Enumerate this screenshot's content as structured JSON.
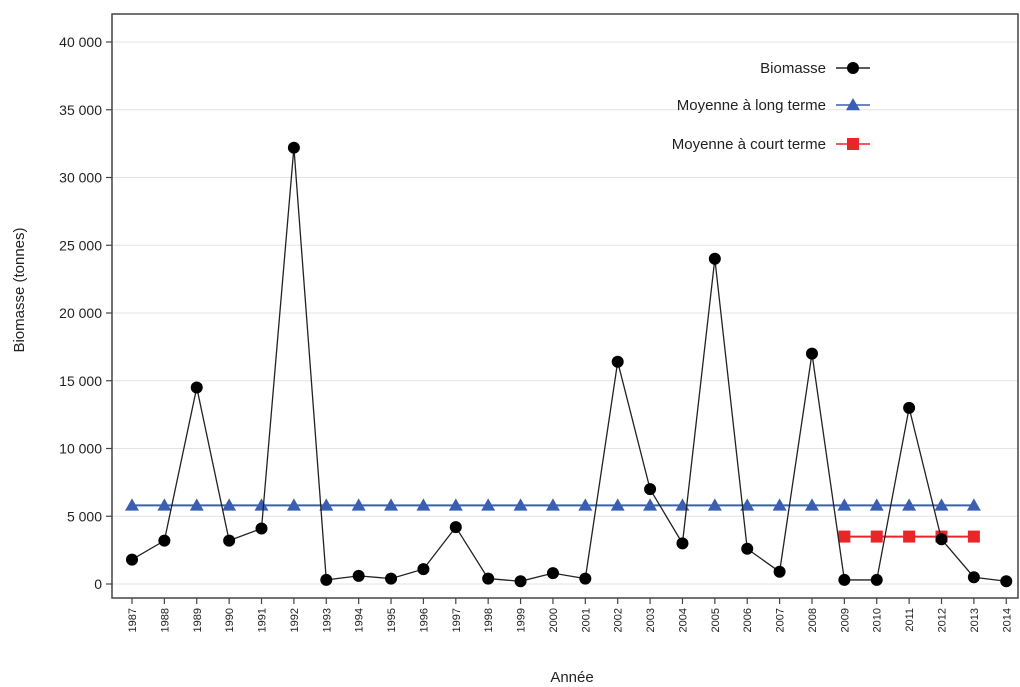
{
  "chart_data": {
    "type": "line",
    "xlabel": "Année",
    "ylabel": "Biomasse (tonnes)",
    "ylim": [
      0,
      40000
    ],
    "yticks": [
      0,
      5000,
      10000,
      15000,
      20000,
      25000,
      30000,
      35000,
      40000
    ],
    "ytick_labels": [
      "0",
      "5 000",
      "10 000",
      "15 000",
      "20 000",
      "25 000",
      "30 000",
      "35 000",
      "40 000"
    ],
    "grid": "horizontal",
    "legend_position": "top-right",
    "x": [
      "1987",
      "1988",
      "1989",
      "1990",
      "1991",
      "1992",
      "1993",
      "1994",
      "1995",
      "1996",
      "1997",
      "1998",
      "1999",
      "2000",
      "2001",
      "2002",
      "2003",
      "2004",
      "2005",
      "2006",
      "2007",
      "2008",
      "2009",
      "2010",
      "2011",
      "2012",
      "2013",
      "2014"
    ],
    "series": [
      {
        "name": "Biomasse",
        "color": "#000000",
        "marker": "circle",
        "x": [
          "1987",
          "1988",
          "1989",
          "1990",
          "1991",
          "1992",
          "1993",
          "1994",
          "1995",
          "1996",
          "1997",
          "1998",
          "1999",
          "2000",
          "2001",
          "2002",
          "2003",
          "2004",
          "2005",
          "2006",
          "2007",
          "2008",
          "2009",
          "2010",
          "2011",
          "2012",
          "2013",
          "2014"
        ],
        "values": [
          1800,
          3200,
          14500,
          3200,
          4100,
          32200,
          300,
          600,
          400,
          1100,
          4200,
          400,
          200,
          800,
          400,
          16400,
          7000,
          3000,
          24000,
          2600,
          900,
          17000,
          300,
          300,
          13000,
          3300,
          500,
          200
        ]
      },
      {
        "name": "Moyenne à long terme",
        "color": "#3a5fb0",
        "marker": "triangle",
        "x": [
          "1987",
          "1988",
          "1989",
          "1990",
          "1991",
          "1992",
          "1993",
          "1994",
          "1995",
          "1996",
          "1997",
          "1998",
          "1999",
          "2000",
          "2001",
          "2002",
          "2003",
          "2004",
          "2005",
          "2006",
          "2007",
          "2008",
          "2009",
          "2010",
          "2011",
          "2012",
          "2013"
        ],
        "values": [
          5800,
          5800,
          5800,
          5800,
          5800,
          5800,
          5800,
          5800,
          5800,
          5800,
          5800,
          5800,
          5800,
          5800,
          5800,
          5800,
          5800,
          5800,
          5800,
          5800,
          5800,
          5800,
          5800,
          5800,
          5800,
          5800,
          5800
        ]
      },
      {
        "name": "Moyenne à court terme",
        "color": "#e8262a",
        "marker": "square",
        "x": [
          "2009",
          "2010",
          "2011",
          "2012",
          "2013"
        ],
        "values": [
          3500,
          3500,
          3500,
          3500,
          3500
        ]
      }
    ]
  }
}
